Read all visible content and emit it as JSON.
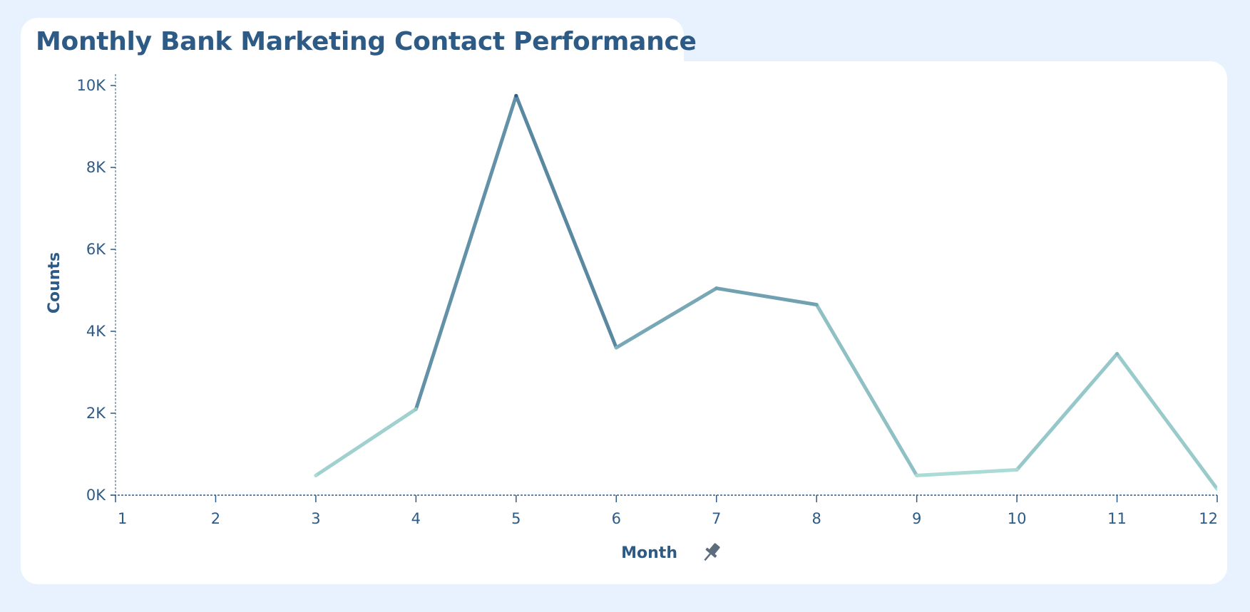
{
  "chart_data": {
    "type": "line",
    "title": "Monthly Bank Marketing Contact Performance",
    "xlabel": "Month",
    "ylabel": "Counts",
    "x_ticks": [
      "1",
      "2",
      "3",
      "4",
      "5",
      "6",
      "7",
      "8",
      "9",
      "10",
      "11",
      "12"
    ],
    "y_ticks": [
      "0K",
      "2K",
      "4K",
      "6K",
      "8K",
      "10K"
    ],
    "xlim": [
      1,
      12
    ],
    "ylim": [
      0,
      10000
    ],
    "grid": false,
    "series": [
      {
        "x": [
          3,
          4,
          5,
          6,
          7,
          8,
          9,
          10,
          11,
          12
        ],
        "values": [
          480,
          2100,
          9750,
          3600,
          5050,
          4650,
          480,
          620,
          3450,
          150
        ]
      }
    ],
    "color_range": [
      "#b1e3da",
      "#2e5b85"
    ]
  },
  "xaxis": {
    "pin_icon": "pin-icon"
  }
}
